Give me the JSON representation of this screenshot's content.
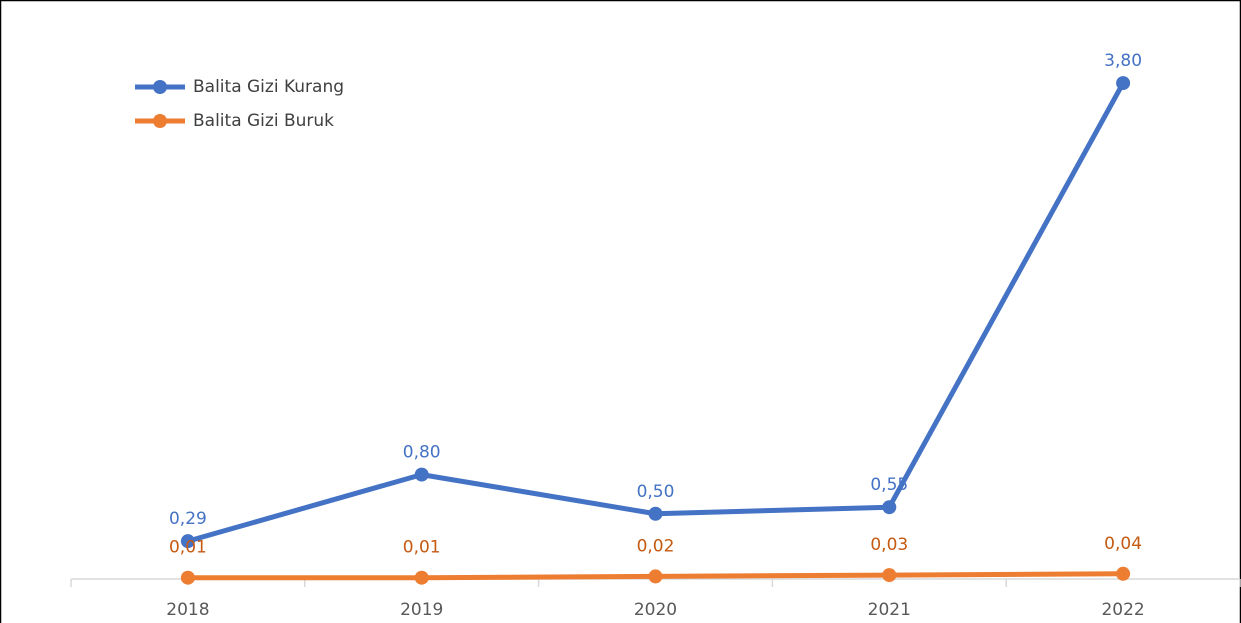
{
  "chart_data": {
    "type": "line",
    "categories": [
      "2018",
      "2019",
      "2020",
      "2021",
      "2022"
    ],
    "series": [
      {
        "name": "Balita Gizi Kurang",
        "color": "#4472c4",
        "values": [
          0.29,
          0.8,
          0.5,
          0.55,
          3.8
        ],
        "value_labels": [
          "0,29",
          "0,80",
          "0,50",
          "0,55",
          "3,80"
        ]
      },
      {
        "name": "Balita Gizi Buruk",
        "color": "#ed7d31",
        "values": [
          0.01,
          0.01,
          0.02,
          0.03,
          0.04
        ],
        "value_labels": [
          "0,01",
          "0,01",
          "0,02",
          "0,03",
          "0,04"
        ]
      }
    ],
    "ylim": [
      0,
      4
    ],
    "legend": "top-left"
  }
}
